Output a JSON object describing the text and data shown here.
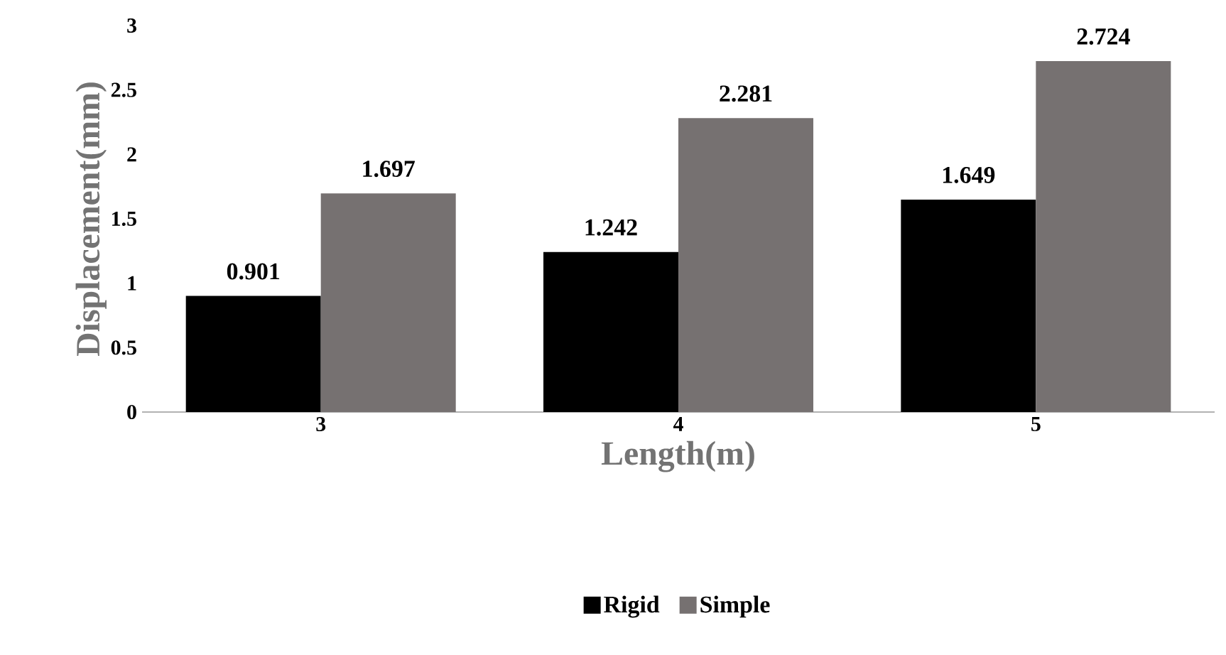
{
  "chart_data": {
    "type": "bar",
    "xlabel": "Length(m)",
    "ylabel": "Displacement(mm)",
    "categories": [
      "3",
      "4",
      "5"
    ],
    "series": [
      {
        "name": "Rigid",
        "color": "#000000",
        "values": [
          0.901,
          1.242,
          1.649
        ]
      },
      {
        "name": "Simple",
        "color": "#767171",
        "values": [
          1.697,
          2.281,
          2.724
        ]
      }
    ],
    "ylim": [
      0,
      3
    ],
    "yticks": [
      0,
      0.5,
      1,
      1.5,
      2,
      2.5,
      3
    ],
    "data_labels": true,
    "legend": "bottom",
    "grid": false
  }
}
